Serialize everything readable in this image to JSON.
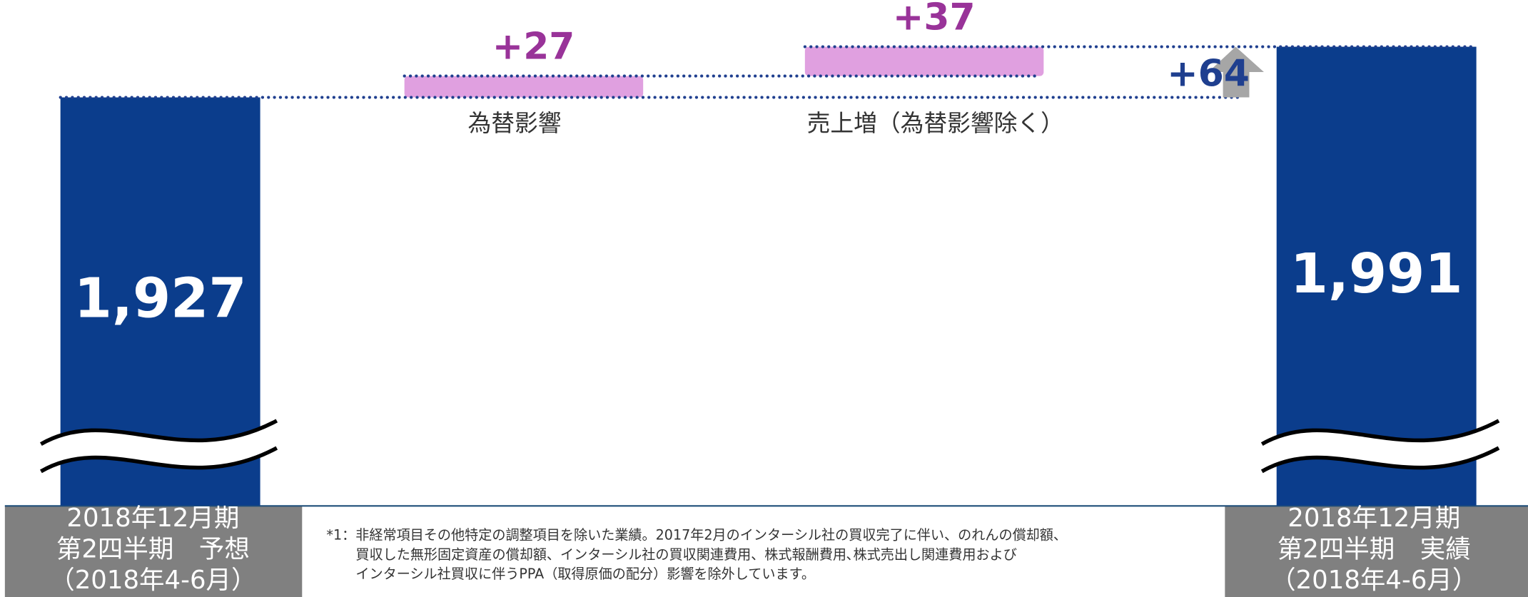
{
  "chart_data": {
    "type": "waterfall",
    "categories": [
      [
        "2018年12月期",
        "第2四半期　予想",
        "（2018年4-6月）"
      ],
      "為替影響",
      "売上増（為替影響除く）",
      [
        "2018年12月期",
        "第2四半期　実績",
        "（2018年4-6月）"
      ]
    ],
    "values": [
      1927,
      27,
      37,
      1991
    ],
    "value_labels": [
      "1,927",
      "+27",
      "+37",
      "1,991"
    ],
    "measures": [
      "absolute",
      "relative",
      "relative",
      "absolute"
    ],
    "colors": [
      "#0b3d8c",
      "#e0a0e0",
      "#e0a0e0",
      "#0b3d8c"
    ],
    "label_colors": [
      "#ffffff",
      "#993399",
      "#993399",
      "#ffffff"
    ],
    "total_change": {
      "value": 64,
      "label": "+64"
    },
    "axis_break": true,
    "footnote": [
      "*1：非経常項目その他特定の調整項目を除いた業績。2017年2月のインターシル社の買収完了に伴い、のれんの償却額、",
      "買収した無形固定資産の償却額、インターシル社の買収関連費用、株式報酬費用､株式売出し関連費用および",
      "インターシル社買収に伴うPPA（取得原価の配分）影響を除外しています。"
    ]
  }
}
